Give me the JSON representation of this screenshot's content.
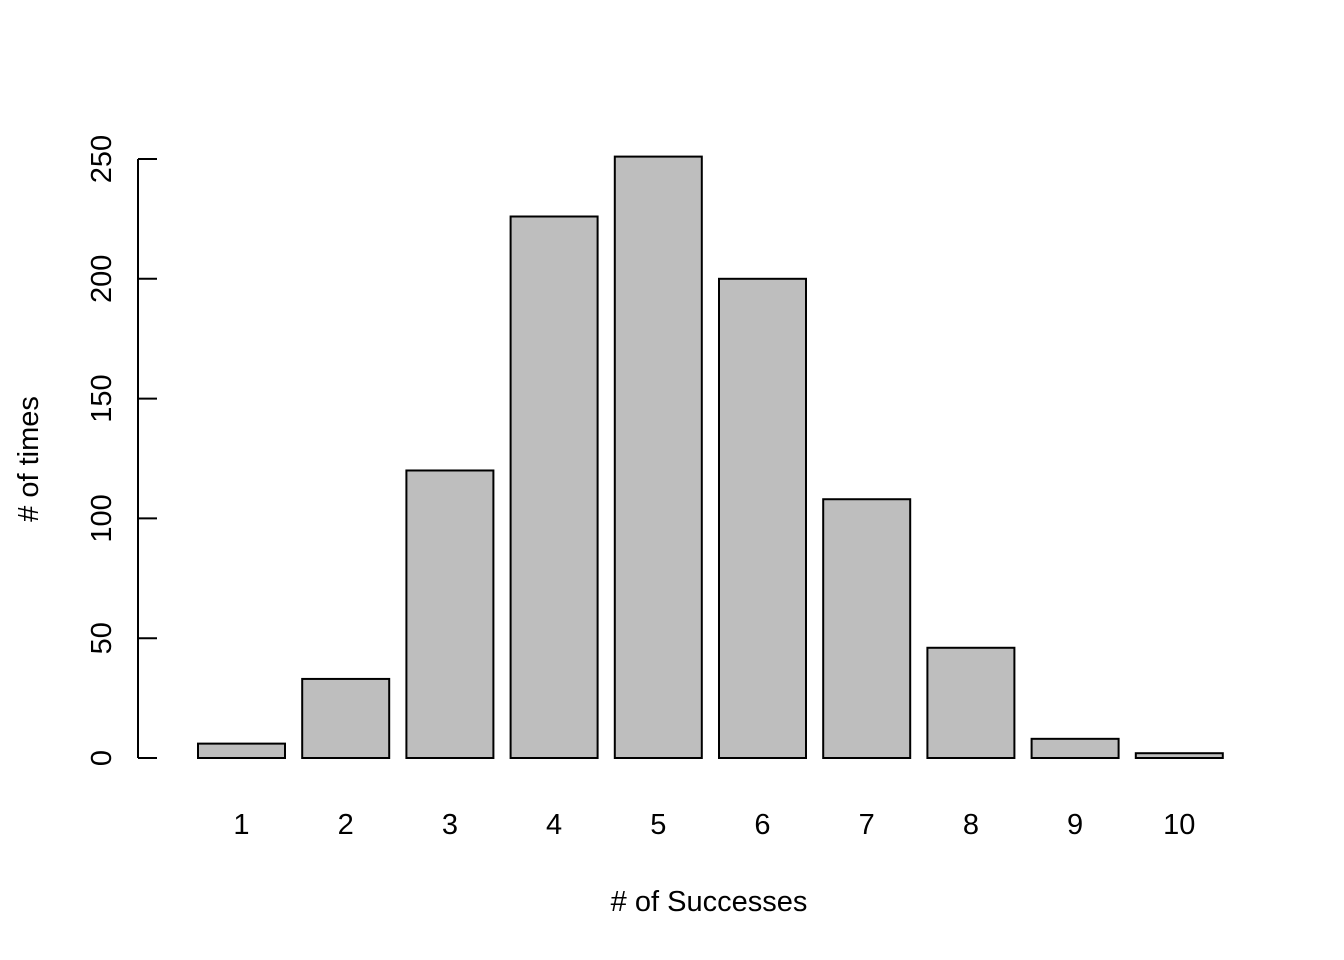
{
  "chart_data": {
    "type": "bar",
    "title": "",
    "categories": [
      "1",
      "2",
      "3",
      "4",
      "5",
      "6",
      "7",
      "8",
      "9",
      "10"
    ],
    "values": [
      6,
      33,
      120,
      226,
      251,
      200,
      108,
      46,
      8,
      2
    ],
    "xlabel": "# of Successes",
    "ylabel": "# of times",
    "ylim": [
      0,
      250
    ],
    "yticks": [
      0,
      50,
      100,
      150,
      200,
      250
    ],
    "grid": false,
    "legend": "none",
    "colors": {
      "bar_fill": "#bebebe",
      "bar_stroke": "#000000",
      "axis": "#000000",
      "background": "#ffffff"
    }
  }
}
